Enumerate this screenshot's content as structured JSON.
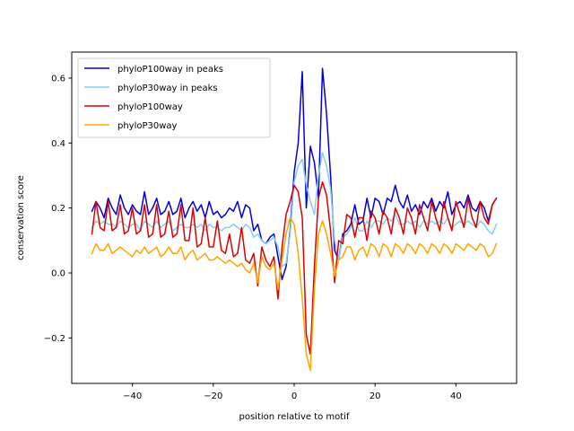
{
  "chart_data": {
    "type": "line",
    "title": "",
    "xlabel": "position relative to motif",
    "ylabel": "conservation score",
    "xlim": [
      -55,
      55
    ],
    "ylim": [
      -0.34,
      0.68
    ],
    "xticks": [
      -40,
      -20,
      0,
      20,
      40
    ],
    "yticks": [
      -0.2,
      0.0,
      0.2,
      0.4,
      0.6
    ],
    "xtick_labels": [
      "−40",
      "−20",
      "0",
      "20",
      "40"
    ],
    "ytick_labels": [
      "−0.2",
      "0.0",
      "0.2",
      "0.4",
      "0.6"
    ],
    "grid": false,
    "legend_position": "top-left",
    "x": [
      -50,
      -49,
      -48,
      -47,
      -46,
      -45,
      -44,
      -43,
      -42,
      -41,
      -40,
      -39,
      -38,
      -37,
      -36,
      -35,
      -34,
      -33,
      -32,
      -31,
      -30,
      -29,
      -28,
      -27,
      -26,
      -25,
      -24,
      -23,
      -22,
      -21,
      -20,
      -19,
      -18,
      -17,
      -16,
      -15,
      -14,
      -13,
      -12,
      -11,
      -10,
      -9,
      -8,
      -7,
      -6,
      -5,
      -4,
      -3,
      -2,
      -1,
      0,
      1,
      2,
      3,
      4,
      5,
      6,
      7,
      8,
      9,
      10,
      11,
      12,
      13,
      14,
      15,
      16,
      17,
      18,
      19,
      20,
      21,
      22,
      23,
      24,
      25,
      26,
      27,
      28,
      29,
      30,
      31,
      32,
      33,
      34,
      35,
      36,
      37,
      38,
      39,
      40,
      41,
      42,
      43,
      44,
      45,
      46,
      47,
      48,
      49,
      50
    ],
    "series": [
      {
        "name": "phyloP100way in peaks",
        "color": "#0000dd",
        "values": [
          0.19,
          0.22,
          0.2,
          0.17,
          0.23,
          0.2,
          0.18,
          0.24,
          0.2,
          0.18,
          0.21,
          0.19,
          0.18,
          0.25,
          0.18,
          0.2,
          0.23,
          0.18,
          0.19,
          0.22,
          0.18,
          0.19,
          0.23,
          0.17,
          0.2,
          0.22,
          0.19,
          0.21,
          0.17,
          0.22,
          0.18,
          0.19,
          0.17,
          0.18,
          0.2,
          0.19,
          0.22,
          0.17,
          0.21,
          0.2,
          0.13,
          0.15,
          0.1,
          0.09,
          0.11,
          0.12,
          0.05,
          -0.02,
          0.02,
          0.13,
          0.31,
          0.4,
          0.62,
          0.2,
          0.39,
          0.34,
          0.23,
          0.63,
          0.49,
          0.3,
          0.07,
          0.04,
          0.12,
          0.13,
          0.15,
          0.21,
          0.15,
          0.16,
          0.23,
          0.17,
          0.23,
          0.22,
          0.18,
          0.23,
          0.22,
          0.27,
          0.22,
          0.2,
          0.24,
          0.19,
          0.21,
          0.18,
          0.22,
          0.2,
          0.23,
          0.19,
          0.22,
          0.2,
          0.25,
          0.18,
          0.21,
          0.22,
          0.2,
          0.24,
          0.2,
          0.19,
          0.22,
          0.2,
          0.16,
          0.21,
          0.23
        ]
      },
      {
        "name": "phyloP30way in peaks",
        "color": "#87ceeb",
        "values": [
          0.14,
          0.16,
          0.15,
          0.16,
          0.15,
          0.15,
          0.14,
          0.16,
          0.15,
          0.14,
          0.15,
          0.15,
          0.13,
          0.16,
          0.15,
          0.14,
          0.16,
          0.14,
          0.15,
          0.16,
          0.13,
          0.14,
          0.15,
          0.14,
          0.14,
          0.15,
          0.14,
          0.15,
          0.13,
          0.15,
          0.14,
          0.14,
          0.13,
          0.14,
          0.14,
          0.15,
          0.14,
          0.13,
          0.15,
          0.14,
          0.11,
          0.12,
          0.1,
          0.09,
          0.1,
          0.11,
          0.08,
          0.02,
          0.03,
          0.12,
          0.28,
          0.33,
          0.35,
          0.27,
          0.22,
          0.18,
          0.3,
          0.37,
          0.33,
          0.26,
          0.1,
          0.04,
          0.11,
          0.12,
          0.14,
          0.17,
          0.13,
          0.13,
          0.16,
          0.14,
          0.16,
          0.16,
          0.15,
          0.17,
          0.16,
          0.18,
          0.15,
          0.15,
          0.16,
          0.15,
          0.16,
          0.14,
          0.16,
          0.15,
          0.16,
          0.15,
          0.16,
          0.15,
          0.17,
          0.14,
          0.15,
          0.16,
          0.15,
          0.16,
          0.15,
          0.14,
          0.16,
          0.15,
          0.13,
          0.12,
          0.15
        ]
      },
      {
        "name": "phyloP100way",
        "color": "#dd0000",
        "values": [
          0.12,
          0.22,
          0.14,
          0.13,
          0.22,
          0.13,
          0.14,
          0.21,
          0.12,
          0.13,
          0.2,
          0.12,
          0.13,
          0.21,
          0.11,
          0.12,
          0.21,
          0.11,
          0.12,
          0.19,
          0.11,
          0.12,
          0.21,
          0.1,
          0.1,
          0.2,
          0.08,
          0.09,
          0.17,
          0.08,
          0.08,
          0.16,
          0.07,
          0.06,
          0.12,
          0.05,
          0.06,
          0.14,
          0.04,
          0.03,
          0.06,
          -0.04,
          0.08,
          0.04,
          0.02,
          0.05,
          -0.08,
          0.08,
          0.18,
          0.22,
          0.27,
          0.25,
          0.17,
          -0.19,
          -0.25,
          0.02,
          0.23,
          0.28,
          0.24,
          0.13,
          -0.03,
          0.1,
          0.09,
          0.18,
          0.17,
          0.11,
          0.17,
          0.17,
          0.1,
          0.19,
          0.17,
          0.12,
          0.19,
          0.17,
          0.12,
          0.2,
          0.17,
          0.12,
          0.2,
          0.17,
          0.12,
          0.21,
          0.17,
          0.13,
          0.22,
          0.17,
          0.13,
          0.22,
          0.17,
          0.13,
          0.22,
          0.18,
          0.14,
          0.23,
          0.17,
          0.14,
          0.22,
          0.17,
          0.15,
          0.21,
          0.23
        ]
      },
      {
        "name": "phyloP30way",
        "color": "#ffa500",
        "values": [
          0.06,
          0.09,
          0.07,
          0.07,
          0.09,
          0.06,
          0.07,
          0.08,
          0.07,
          0.06,
          0.05,
          0.07,
          0.06,
          0.08,
          0.06,
          0.07,
          0.08,
          0.05,
          0.06,
          0.08,
          0.06,
          0.06,
          0.08,
          0.04,
          0.06,
          0.07,
          0.04,
          0.05,
          0.06,
          0.04,
          0.04,
          0.05,
          0.04,
          0.03,
          0.04,
          0.03,
          0.02,
          0.03,
          0.01,
          0.0,
          0.03,
          -0.03,
          0.05,
          0.02,
          0.01,
          0.03,
          -0.05,
          0.04,
          0.12,
          0.17,
          0.15,
          0.06,
          -0.08,
          -0.25,
          -0.3,
          -0.05,
          0.12,
          0.16,
          0.12,
          0.06,
          -0.01,
          0.04,
          0.05,
          0.08,
          0.08,
          0.04,
          0.07,
          0.08,
          0.05,
          0.09,
          0.08,
          0.05,
          0.09,
          0.08,
          0.05,
          0.09,
          0.08,
          0.06,
          0.09,
          0.08,
          0.06,
          0.09,
          0.08,
          0.06,
          0.09,
          0.08,
          0.06,
          0.09,
          0.08,
          0.06,
          0.09,
          0.08,
          0.07,
          0.09,
          0.08,
          0.07,
          0.09,
          0.08,
          0.05,
          0.06,
          0.09
        ]
      }
    ]
  }
}
